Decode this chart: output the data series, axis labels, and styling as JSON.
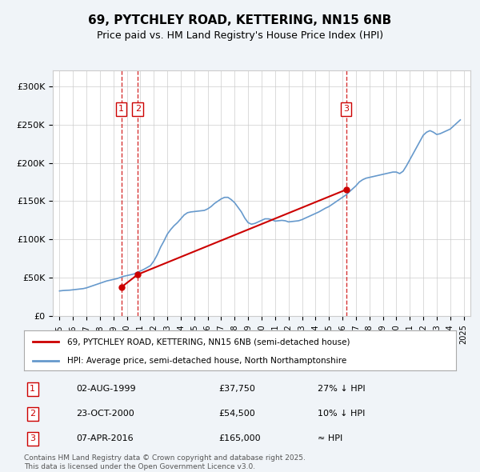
{
  "title": "69, PYTCHLEY ROAD, KETTERING, NN15 6NB",
  "subtitle": "Price paid vs. HM Land Registry's House Price Index (HPI)",
  "legend_line1": "69, PYTCHLEY ROAD, KETTERING, NN15 6NB (semi-detached house)",
  "legend_line2": "HPI: Average price, semi-detached house, North Northamptonshire",
  "footer1": "Contains HM Land Registry data © Crown copyright and database right 2025.",
  "footer2": "This data is licensed under the Open Government Licence v3.0.",
  "transactions": [
    {
      "label": "1",
      "date": "02-AUG-1999",
      "price": 37750,
      "note": "27% ↓ HPI",
      "year": 1999.58
    },
    {
      "label": "2",
      "date": "23-OCT-2000",
      "price": 54500,
      "note": "10% ↓ HPI",
      "year": 2000.81
    },
    {
      "label": "3",
      "date": "07-APR-2016",
      "price": 165000,
      "note": "≈ HPI",
      "year": 2016.27
    }
  ],
  "ylabel_ticks": [
    "£0",
    "£50K",
    "£100K",
    "£150K",
    "£200K",
    "£250K",
    "£300K"
  ],
  "ytick_values": [
    0,
    50000,
    100000,
    150000,
    200000,
    250000,
    300000
  ],
  "ylim": [
    0,
    320000
  ],
  "background_color": "#f0f4f8",
  "plot_bg": "#ffffff",
  "hpi_color": "#6699cc",
  "sale_color": "#cc0000",
  "vline_color": "#cc0000",
  "grid_color": "#cccccc",
  "hpi_data": {
    "years": [
      1995.0,
      1995.25,
      1995.5,
      1995.75,
      1996.0,
      1996.25,
      1996.5,
      1996.75,
      1997.0,
      1997.25,
      1997.5,
      1997.75,
      1998.0,
      1998.25,
      1998.5,
      1998.75,
      1999.0,
      1999.25,
      1999.5,
      1999.75,
      2000.0,
      2000.25,
      2000.5,
      2000.75,
      2001.0,
      2001.25,
      2001.5,
      2001.75,
      2002.0,
      2002.25,
      2002.5,
      2002.75,
      2003.0,
      2003.25,
      2003.5,
      2003.75,
      2004.0,
      2004.25,
      2004.5,
      2004.75,
      2005.0,
      2005.25,
      2005.5,
      2005.75,
      2006.0,
      2006.25,
      2006.5,
      2006.75,
      2007.0,
      2007.25,
      2007.5,
      2007.75,
      2008.0,
      2008.25,
      2008.5,
      2008.75,
      2009.0,
      2009.25,
      2009.5,
      2009.75,
      2010.0,
      2010.25,
      2010.5,
      2010.75,
      2011.0,
      2011.25,
      2011.5,
      2011.75,
      2012.0,
      2012.25,
      2012.5,
      2012.75,
      2013.0,
      2013.25,
      2013.5,
      2013.75,
      2014.0,
      2014.25,
      2014.5,
      2014.75,
      2015.0,
      2015.25,
      2015.5,
      2015.75,
      2016.0,
      2016.25,
      2016.5,
      2016.75,
      2017.0,
      2017.25,
      2017.5,
      2017.75,
      2018.0,
      2018.25,
      2018.5,
      2018.75,
      2019.0,
      2019.25,
      2019.5,
      2019.75,
      2020.0,
      2020.25,
      2020.5,
      2020.75,
      2021.0,
      2021.25,
      2021.5,
      2021.75,
      2022.0,
      2022.25,
      2022.5,
      2022.75,
      2023.0,
      2023.25,
      2023.5,
      2023.75,
      2024.0,
      2024.25,
      2024.5,
      2024.75
    ],
    "values": [
      33000,
      33500,
      33800,
      34000,
      34500,
      35000,
      35500,
      36000,
      37000,
      38500,
      40000,
      41500,
      43000,
      44500,
      46000,
      47000,
      48000,
      49000,
      50500,
      52000,
      53000,
      54000,
      55000,
      57000,
      59000,
      61000,
      63500,
      66000,
      72000,
      80000,
      90000,
      98000,
      107000,
      113000,
      118000,
      122000,
      127000,
      132000,
      135000,
      136000,
      136500,
      137000,
      137500,
      138000,
      140000,
      143000,
      147000,
      150000,
      153000,
      155000,
      155000,
      152000,
      148000,
      142000,
      136000,
      128000,
      122000,
      120000,
      121000,
      123000,
      125000,
      127000,
      127000,
      126000,
      124000,
      124500,
      125000,
      124500,
      123000,
      123500,
      124000,
      124500,
      126000,
      128000,
      130000,
      132000,
      134000,
      136000,
      138500,
      141000,
      143000,
      146000,
      149000,
      152000,
      155000,
      158000,
      162000,
      166000,
      170000,
      175000,
      178000,
      180000,
      181000,
      182000,
      183000,
      184000,
      185000,
      186000,
      187000,
      188000,
      188000,
      186000,
      189000,
      196000,
      204000,
      212000,
      220000,
      228000,
      236000,
      240000,
      242000,
      240000,
      237000,
      238000,
      240000,
      242000,
      244000,
      248000,
      252000,
      256000
    ]
  },
  "sale_data": {
    "years": [
      1999.58,
      2000.81,
      2016.27
    ],
    "values": [
      37750,
      54500,
      165000
    ]
  }
}
